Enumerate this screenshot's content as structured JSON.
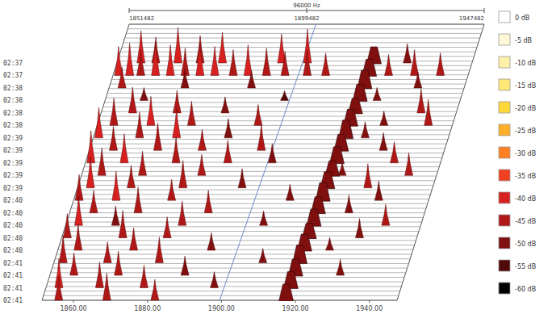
{
  "chart_data": {
    "type": "waterfall",
    "categories": [
      "02:37",
      "02:37",
      "02:38",
      "02:38",
      "02:38",
      "02:38",
      "02:39",
      "02:39",
      "02:39",
      "02:39",
      "02:39",
      "02:40",
      "02:40",
      "02:40",
      "02:40",
      "02:40",
      "02:41",
      "02:41",
      "02:41",
      "02:41"
    ],
    "xlim": [
      1851.482,
      1947.482
    ],
    "xticks": [
      {
        "value": 1860,
        "label": "1860.00"
      },
      {
        "value": 1880,
        "label": "1880.00"
      },
      {
        "value": 1900,
        "label": "1900.00"
      },
      {
        "value": 1920,
        "label": "1920.00"
      },
      {
        "value": 1940,
        "label": "1940.00"
      }
    ],
    "top_axis": {
      "title": "96000 Hz",
      "ticks": [
        {
          "value": 1851.482,
          "label": "1851482"
        },
        {
          "value": 1899.482,
          "label": "1899482"
        },
        {
          "value": 1947.482,
          "label": "1947482"
        }
      ]
    },
    "level_range": [
      -60,
      0
    ],
    "colorbar": {
      "ticks": [
        {
          "value": 0,
          "label": "0 dB"
        },
        {
          "value": -5,
          "label": "-5 dB"
        },
        {
          "value": -10,
          "label": "-10 dB"
        },
        {
          "value": -15,
          "label": "-15 dB"
        },
        {
          "value": -20,
          "label": "-20 dB"
        },
        {
          "value": -25,
          "label": "-25 dB"
        },
        {
          "value": -30,
          "label": "-30 dB"
        },
        {
          "value": -35,
          "label": "-35 dB"
        },
        {
          "value": -40,
          "label": "-40 dB"
        },
        {
          "value": -45,
          "label": "-45 dB"
        },
        {
          "value": -50,
          "label": "-50 dB"
        },
        {
          "value": -55,
          "label": "-55 dB"
        },
        {
          "value": -60,
          "label": "-60 dB"
        }
      ],
      "colors": [
        "#ffffff",
        "#fff8d8",
        "#fff0a8",
        "#ffe878",
        "#ffd838",
        "#ffb028",
        "#ff8020",
        "#f04020",
        "#d82020",
        "#b01818",
        "#801010",
        "#500808",
        "#000000"
      ]
    },
    "peaks": {
      "row": [
        0,
        0,
        0,
        0,
        0,
        0,
        0,
        0,
        1,
        1,
        1,
        1,
        1,
        1,
        1,
        1,
        1,
        1,
        1,
        1,
        1,
        1,
        1,
        1,
        1,
        2,
        2,
        2,
        2,
        3,
        3,
        3,
        4,
        4,
        4,
        4,
        5,
        5,
        5,
        5,
        5,
        5,
        6,
        6,
        6,
        6,
        6,
        7,
        7,
        7,
        7,
        7,
        8,
        8,
        8,
        8,
        8,
        8,
        9,
        9,
        9,
        9,
        9,
        10,
        10,
        10,
        10,
        10,
        11,
        11,
        11,
        11,
        11,
        12,
        12,
        12,
        12,
        13,
        13,
        13,
        13,
        13,
        14,
        14,
        14,
        14,
        15,
        15,
        15,
        15,
        16,
        16,
        16,
        16,
        17,
        17,
        17,
        17,
        18,
        18,
        18,
        18,
        19,
        19,
        19
      ],
      "x": [
        1858,
        1862,
        1868,
        1874,
        1880,
        1896,
        1903,
        1930,
        1853,
        1856,
        1859,
        1863,
        1867,
        1871,
        1875,
        1879,
        1884,
        1888,
        1893,
        1898,
        1904,
        1909,
        1926,
        1933,
        1940,
        1855,
        1872,
        1890,
        1935,
        1862,
        1900,
        1925,
        1860,
        1872,
        1885,
        1938,
        1856,
        1866,
        1877,
        1895,
        1929,
        1941,
        1853,
        1864,
        1874,
        1888,
        1925,
        1858,
        1870,
        1882,
        1898,
        1931,
        1853,
        1862,
        1876,
        1890,
        1902,
        1935,
        1857,
        1868,
        1884,
        1922,
        1940,
        1855,
        1866,
        1880,
        1896,
        1930,
        1853,
        1863,
        1878,
        1910,
        1934,
        1858,
        1870,
        1889,
        1927,
        1855,
        1865,
        1883,
        1905,
        1938,
        1853,
        1868,
        1880,
        1932,
        1857,
        1872,
        1893,
        1925,
        1854,
        1866,
        1880,
        1908,
        1858,
        1870,
        1888,
        1930,
        1855,
        1866,
        1878,
        1897,
        1856,
        1869,
        1882
      ],
      "level": [
        -40,
        -44,
        -38,
        -43,
        -41,
        -42,
        -39,
        -48,
        -42,
        -40,
        -44,
        -39,
        -41,
        -43,
        -40,
        -42,
        -44,
        -41,
        -43,
        -45,
        -44,
        -46,
        -47,
        -44,
        -46,
        -47,
        -48,
        -49,
        -50,
        -52,
        -54,
        -52,
        -44,
        -46,
        -50,
        -45,
        -43,
        -42,
        -45,
        -47,
        -51,
        -44,
        -41,
        -44,
        -42,
        -48,
        -50,
        -45,
        -43,
        -47,
        -44,
        -49,
        -40,
        -42,
        -44,
        -46,
        -48,
        -47,
        -43,
        -45,
        -47,
        -52,
        -46,
        -41,
        -46,
        -43,
        -48,
        -45,
        -44,
        -42,
        -47,
        -50,
        -48,
        -46,
        -44,
        -46,
        -49,
        -42,
        -48,
        -45,
        -51,
        -47,
        -45,
        -43,
        -47,
        -48,
        -44,
        -46,
        -49,
        -52,
        -43,
        -47,
        -44,
        -51,
        -46,
        -45,
        -48,
        -50,
        -42,
        -44,
        -46,
        -50,
        -45,
        -43,
        -47
      ]
    },
    "carrier": {
      "x": [
        1921.0,
        1920.8,
        1920.6,
        1920.4,
        1920.2,
        1920.0,
        1919.8,
        1919.6,
        1919.5,
        1919.3,
        1919.1,
        1918.9,
        1918.7,
        1918.6,
        1918.4,
        1918.2,
        1918.0,
        1917.9,
        1917.7,
        1917.5
      ],
      "level": [
        -50,
        -50,
        -49,
        -50,
        -51,
        -50,
        -49,
        -50,
        -50,
        -51,
        -50,
        -49,
        -50,
        -50,
        -51,
        -50,
        -49,
        -50,
        -50,
        -50
      ]
    },
    "cursor": {
      "x": [
        1902.0,
        1899.5
      ]
    }
  }
}
